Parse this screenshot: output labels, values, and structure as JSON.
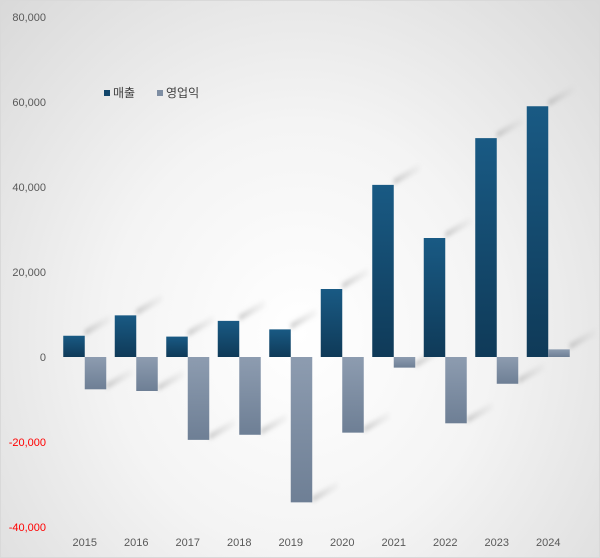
{
  "chart_data": {
    "type": "bar",
    "categories": [
      "2015",
      "2016",
      "2017",
      "2018",
      "2019",
      "2020",
      "2021",
      "2022",
      "2023",
      "2024"
    ],
    "series": [
      {
        "name": "매출",
        "values": [
          5000,
          9800,
          4800,
          8500,
          6500,
          16000,
          40500,
          28000,
          51500,
          59000
        ],
        "color": "#12466b"
      },
      {
        "name": "영업익",
        "values": [
          -7600,
          -8000,
          -19500,
          -18300,
          -34200,
          -17800,
          -2500,
          -15600,
          -6300,
          1800
        ],
        "color": "#7e8ea3"
      }
    ],
    "ylim": [
      -40000,
      80000
    ],
    "yticks": [
      {
        "value": 80000,
        "label": "80,000"
      },
      {
        "value": 60000,
        "label": "60,000"
      },
      {
        "value": 40000,
        "label": "40,000"
      },
      {
        "value": 20000,
        "label": "20,000"
      },
      {
        "value": 0,
        "label": "0"
      },
      {
        "value": -20000,
        "label": "-20,000"
      },
      {
        "value": -40000,
        "label": "-40,000"
      }
    ],
    "negative_tick_color": "#ff0000",
    "legend_position": "top-left",
    "grid": false
  }
}
